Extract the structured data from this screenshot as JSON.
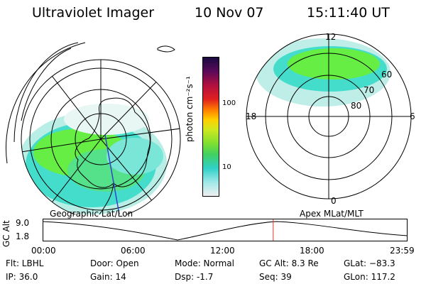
{
  "header": {
    "instrument": "Ultraviolet Imager",
    "date": "10 Nov 07",
    "time": "15:11:40 UT"
  },
  "colorbar": {
    "unit_label": "photon cm⁻²s⁻¹",
    "ticks": [
      "100",
      "10"
    ]
  },
  "panels": {
    "left_label": "Geographic Lat/Lon",
    "right_label": "Apex MLat/MLT",
    "mlt": {
      "top": "12",
      "bottom": "0",
      "left": "18",
      "right": "6"
    },
    "mlat": [
      "60",
      "70",
      "80"
    ]
  },
  "timeline": {
    "axis_label": "GC Alt",
    "y_ticks": [
      "9.0",
      "1.8"
    ],
    "x_ticks": [
      "00:00",
      "06:00",
      "12:00",
      "18:00",
      "23:59"
    ],
    "current_time_fraction": 0.632
  },
  "footer": {
    "filter": "Flt: LBHL",
    "ip": "IP: 36.0",
    "door": "Door: Open",
    "gain": "Gain: 14",
    "mode": "Mode: Normal",
    "dsp": "Dsp:    -1.7",
    "gcalt": "GC Alt: 8.3 Re",
    "seq": "Seq: 39",
    "glat": "GLat: −83.3",
    "glon": "GLon: 117.2"
  },
  "colors": {
    "aurora_green": "#66ee44",
    "aurora_cyan": "#44ddcc",
    "aurora_light": "#bfeee8",
    "marker_red": "#dd3333",
    "meridian_blue": "#3344cc"
  }
}
